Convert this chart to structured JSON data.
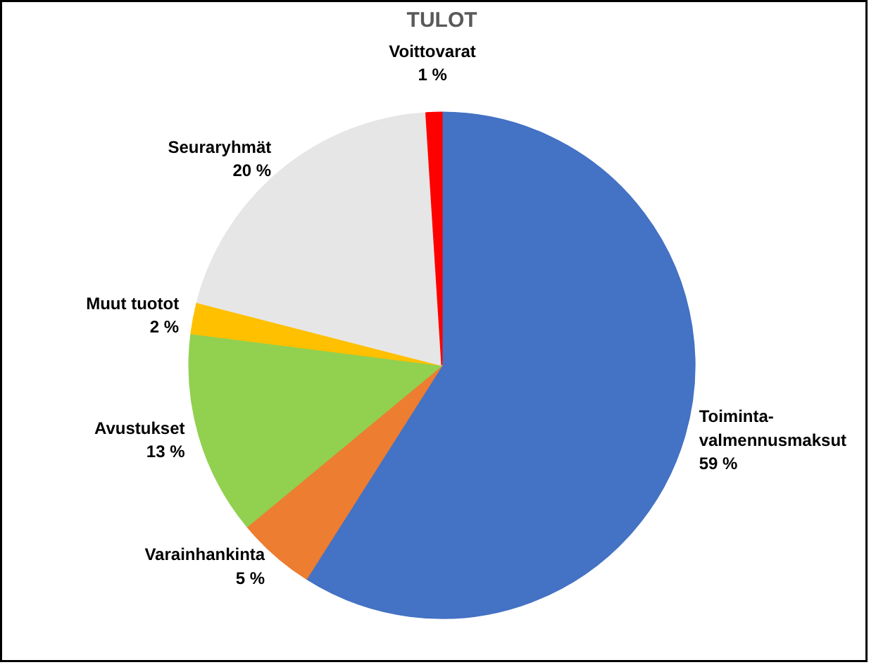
{
  "chart_data": {
    "type": "pie",
    "title": "TULOT",
    "categories": [
      "Toiminta-valmennusmaksut",
      "Varainhankinta",
      "Avustukset",
      "Muut tuotot",
      "Seuraryhmät",
      "Voittovarat"
    ],
    "values": [
      59,
      5,
      13,
      2,
      20,
      1
    ],
    "value_labels": [
      "59 %",
      "5 %",
      "13 %",
      "2 %",
      "20 %",
      "1 %"
    ],
    "colors": [
      "#4472c4",
      "#ed7d31",
      "#92d050",
      "#ffc000",
      "#e7e6e6",
      "#ff0000"
    ]
  }
}
